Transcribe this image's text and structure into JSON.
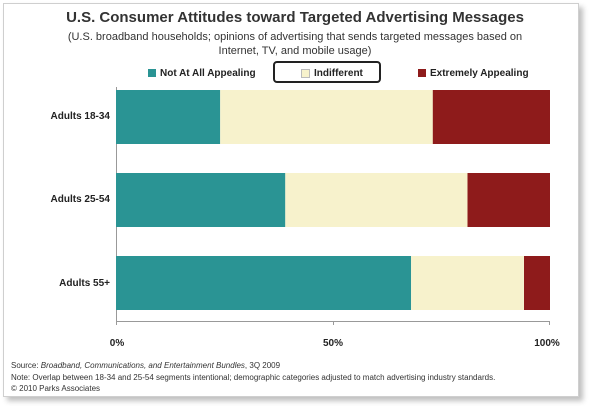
{
  "chart_data": {
    "type": "bar",
    "orientation": "horizontal",
    "stacked": true,
    "title": "U.S. Consumer Attitudes toward Targeted Advertising Messages",
    "subtitle": "(U.S. broadband households; opinions of advertising that sends targeted messages based on Internet, TV, and mobile usage)",
    "categories": [
      "Adults 18-34",
      "Adults 25-54",
      "Adults 55+"
    ],
    "series": [
      {
        "name": "Not At All Appealing",
        "color": "#2a9494",
        "values": [
          24,
          39,
          68
        ]
      },
      {
        "name": "Indifferent",
        "color": "#f7f2cc",
        "values": [
          49,
          42,
          26
        ]
      },
      {
        "name": "Extremely Appealing",
        "color": "#8e1b1b",
        "values": [
          27,
          19,
          6
        ]
      }
    ],
    "xlim": [
      0,
      100
    ],
    "ticks": [
      "0%",
      "50%",
      "100%"
    ],
    "legend_position": "top",
    "grid": false
  },
  "footer": {
    "source_prefix": "Source: ",
    "source_title": "Broadband, Communications, and Entertainment Bundles",
    "source_suffix": ", 3Q 2009",
    "note": "Note: Overlap between 18-34 and 25-54  segments intentional; demographic categories adjusted to match advertising industry standards.",
    "copyright": "© 2010  Parks Associates"
  }
}
